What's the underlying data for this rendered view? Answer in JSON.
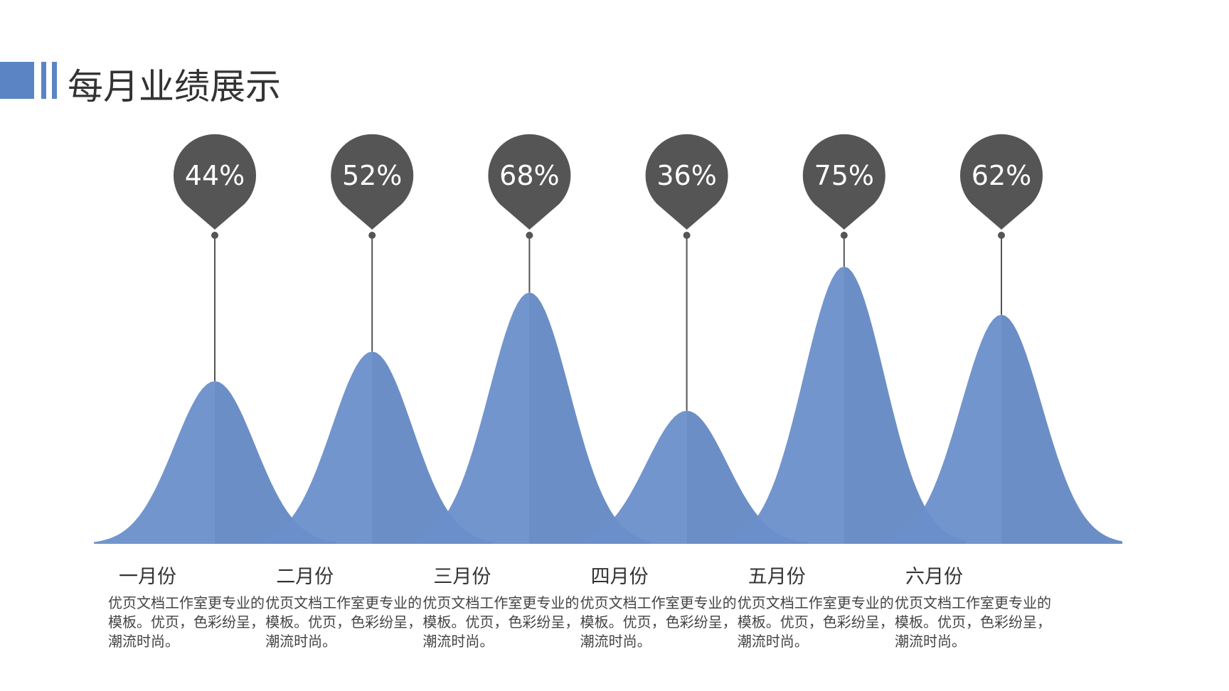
{
  "chart_data": {
    "type": "bell",
    "title": "每月业绩展示",
    "categories": [
      "一月份",
      "二月份",
      "三月份",
      "四月份",
      "五月份",
      "六月份"
    ],
    "values": [
      44,
      52,
      68,
      36,
      75,
      62
    ],
    "value_labels": [
      "44%",
      "52%",
      "68%",
      "36%",
      "75%",
      "62%"
    ],
    "descriptions": [
      "优页文档工作室更专业的模板。优页，色彩纷呈，潮流时尚。",
      "优页文档工作室更专业的模板。优页，色彩纷呈，潮流时尚。",
      "优页文档工作室更专业的模板。优页，色彩纷呈，潮流时尚。",
      "优页文档工作室更专业的模板。优页，色彩纷呈，潮流时尚。",
      "优页文档工作室更专业的模板。优页，色彩纷呈，潮流时尚。",
      "优页文档工作室更专业的模板。优页，色彩纷呈，潮流时尚。"
    ],
    "color": "#6a8fca",
    "pin_color": "#555555"
  }
}
